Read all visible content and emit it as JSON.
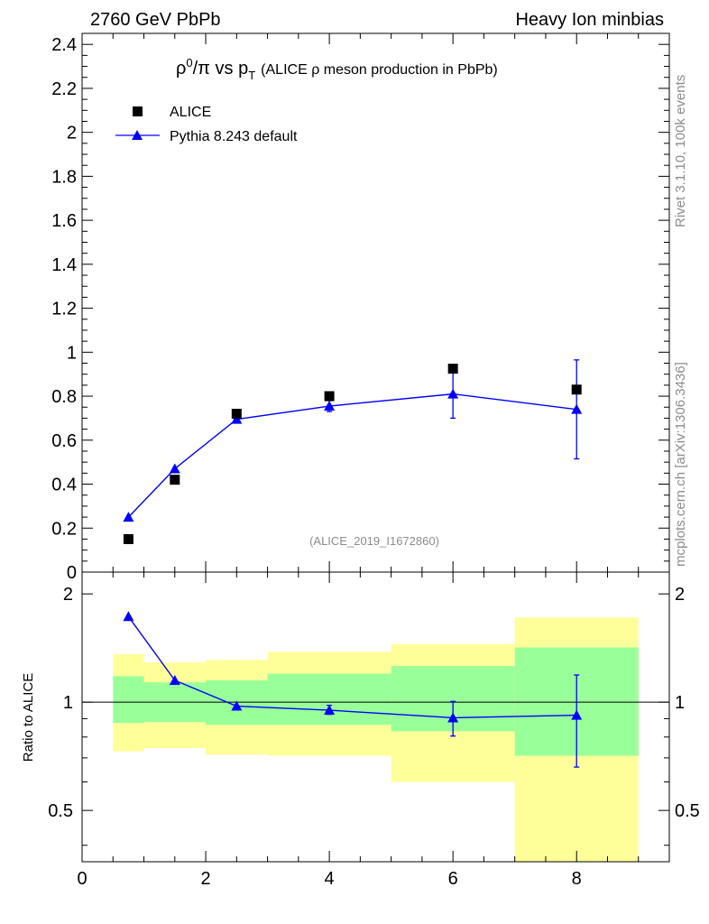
{
  "header": {
    "left": "2760 GeV PbPb",
    "right": "Heavy Ion minbias"
  },
  "side": {
    "rivet": "Rivet 3.1.10,  100k events",
    "mcplots": "mcplots.cern.ch [arXiv:1306.3436]"
  },
  "chart_data": [
    {
      "type": "scatter",
      "title_parts": {
        "rho": "ρ",
        "sup": "0",
        "over": "/π vs p",
        "sub": "T",
        "rest": "(ALICE ρ meson production in PbPb)"
      },
      "watermark": "(ALICE_2019_I1672860)",
      "xlim": [
        0,
        9.5
      ],
      "ylim": [
        0,
        2.45
      ],
      "yticks": [
        "0",
        "0.2",
        "0.4",
        "0.6",
        "0.8",
        "1",
        "1.2",
        "1.4",
        "1.6",
        "1.8",
        "2",
        "2.2",
        "2.4"
      ],
      "legend": {
        "placement": "top-left"
      },
      "series": [
        {
          "name": "ALICE",
          "marker": "square",
          "color": "#000000",
          "x": [
            0.75,
            1.5,
            2.5,
            4,
            6,
            8
          ],
          "y": [
            0.15,
            0.42,
            0.72,
            0.8,
            0.925,
            0.83
          ]
        },
        {
          "name": "Pythia 8.243 default",
          "marker": "triangle",
          "color": "#0000ff",
          "x": [
            0.75,
            1.5,
            2.5,
            4,
            6,
            8
          ],
          "y": [
            0.25,
            0.47,
            0.695,
            0.755,
            0.81,
            0.74
          ],
          "err": [
            0.0,
            0.0,
            0.01,
            0.025,
            0.11,
            0.225
          ]
        }
      ]
    },
    {
      "type": "line",
      "ylabel": "Ratio to ALICE",
      "xlim": [
        0,
        9.5
      ],
      "ylim": [
        0.36,
        2.3
      ],
      "yscale": "log",
      "yticks": [
        "0.5",
        "1",
        "2"
      ],
      "xticks": [
        "0",
        "2",
        "4",
        "6",
        "8"
      ],
      "bands": {
        "edges": [
          0.5,
          1.0,
          2.0,
          3.0,
          5.0,
          7.0,
          9.0
        ],
        "yellow_lo": [
          0.73,
          0.745,
          0.715,
          0.71,
          0.6,
          0.34
        ],
        "yellow_hi": [
          1.36,
          1.29,
          1.31,
          1.38,
          1.45,
          1.72
        ],
        "green_lo": [
          0.875,
          0.88,
          0.865,
          0.865,
          0.83,
          0.71
        ],
        "green_hi": [
          1.18,
          1.135,
          1.15,
          1.2,
          1.26,
          1.42
        ],
        "yellow": "#ffff99",
        "green": "#99ff99"
      },
      "series": [
        {
          "name": "Pythia 8.243 default",
          "color": "#0000ff",
          "x": [
            0.75,
            1.5,
            2.5,
            4,
            6,
            8
          ],
          "y": [
            1.73,
            1.15,
            0.975,
            0.95,
            0.905,
            0.92
          ],
          "err_lo": [
            0.0,
            0.0,
            0.0,
            0.025,
            0.1,
            0.26
          ],
          "err_hi": [
            0.0,
            0.0,
            0.0,
            0.03,
            0.1,
            0.27
          ]
        }
      ]
    }
  ]
}
